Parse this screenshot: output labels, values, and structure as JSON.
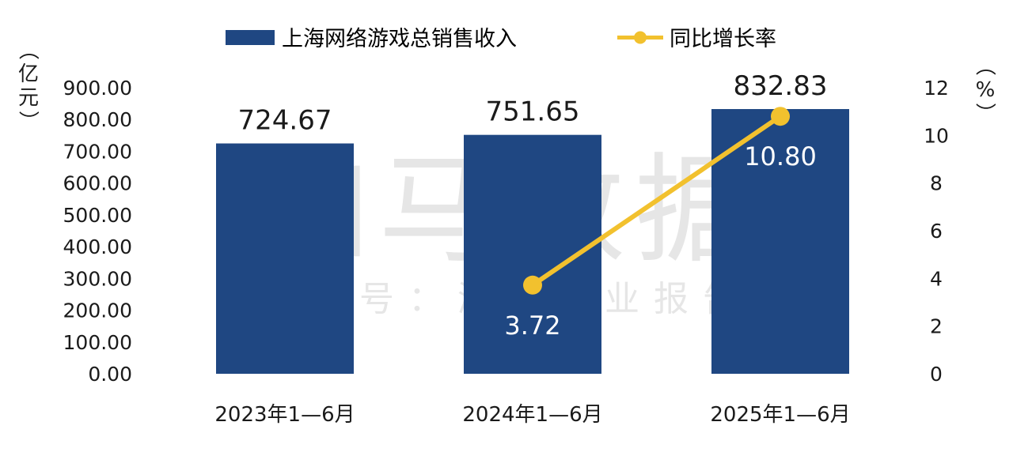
{
  "chart_data": {
    "type": "bar+line",
    "categories": [
      "2023年1—6月",
      "2024年1—6月",
      "2025年1—6月"
    ],
    "series": [
      {
        "name": "上海网络游戏总销售收入",
        "kind": "bar",
        "axis": "left",
        "values": [
          724.67,
          751.65,
          832.83
        ],
        "labels": [
          "724.67",
          "751.65",
          "832.83"
        ]
      },
      {
        "name": "同比增长率",
        "kind": "line",
        "axis": "right",
        "values": [
          null,
          3.72,
          10.8
        ],
        "labels": [
          "",
          "3.72",
          "10.80"
        ]
      }
    ],
    "y_left": {
      "label": "（亿元）",
      "ylim": [
        0,
        900
      ],
      "ticks": [
        "0.00",
        "100.00",
        "200.00",
        "300.00",
        "400.00",
        "500.00",
        "600.00",
        "700.00",
        "800.00",
        "900.00"
      ]
    },
    "y_right": {
      "label": "（%）",
      "ylim": [
        0,
        12
      ],
      "ticks": [
        "0",
        "2",
        "4",
        "6",
        "8",
        "10",
        "12"
      ]
    },
    "legend_position": "top-center",
    "grid": false,
    "watermark": {
      "main": "伽马数据",
      "sub": "微信号：游戏产业报告"
    },
    "colors": {
      "bar": "#1f4782",
      "line": "#f2c12e",
      "watermark": "#e6e6e6"
    }
  }
}
